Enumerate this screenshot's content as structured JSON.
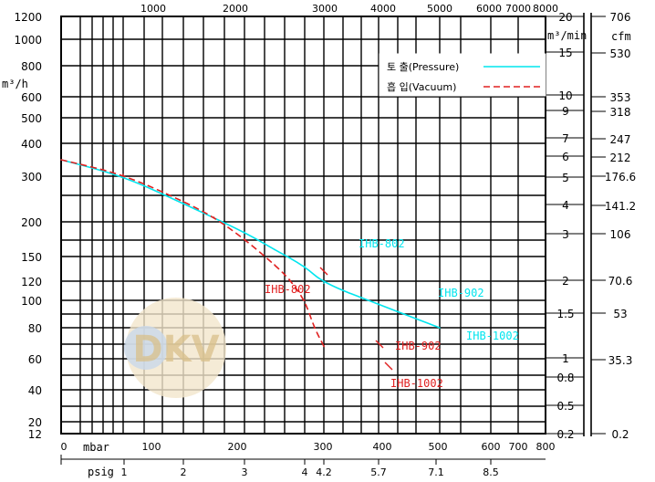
{
  "chart_data": {
    "type": "line",
    "units": {
      "left_top": "m³/h",
      "right_inner_top": "m³/min",
      "right_outer_top": "cfm",
      "bottom_primary": "mbar",
      "bottom_secondary": "psig"
    },
    "left_ticks": [
      "1200",
      "1000",
      "800",
      "600",
      "500",
      "400",
      "300",
      "200",
      "150",
      "120",
      "100",
      "80",
      "60",
      "40",
      "20",
      "12"
    ],
    "right_inner_ticks": [
      "20",
      "15",
      "10",
      "9",
      "7",
      "6",
      "5",
      "4",
      "3",
      "2",
      "1.5",
      "1",
      "0.8",
      "0.5",
      "0.2"
    ],
    "right_outer_ticks": [
      "706",
      "530",
      "353",
      "318",
      "247",
      "212",
      "176.6",
      "141.2",
      "106",
      "70.6",
      "53",
      "35.3",
      "0.2"
    ],
    "top_ticks": [
      "1000",
      "2000",
      "3000",
      "4000",
      "5000",
      "6000",
      "7000",
      "8000"
    ],
    "bottom_primary_ticks": [
      "0",
      "100",
      "200",
      "300",
      "400",
      "500",
      "600",
      "700",
      "800"
    ],
    "bottom_secondary_ticks": [
      "1",
      "2",
      "3",
      "4",
      "4.2",
      "5.7",
      "7.1",
      "8.5"
    ],
    "series": [
      {
        "name": "토 출(Pressure)",
        "color": "#00e5ee",
        "style": "solid",
        "x": [
          0,
          100,
          200,
          300,
          350,
          400,
          450,
          500,
          550
        ],
        "y": [
          350,
          300,
          240,
          185,
          160,
          138,
          118,
          97,
          80
        ]
      },
      {
        "name": "흡 입(Vacuum)",
        "color": "#e02020",
        "style": "dashed",
        "x": [
          0,
          100,
          200,
          250,
          300,
          350,
          375,
          400,
          425,
          450
        ],
        "y": [
          350,
          305,
          245,
          210,
          175,
          140,
          122,
          100,
          80,
          68
        ]
      }
    ],
    "annotations": [
      {
        "text": "IHB-802",
        "color": "#00e5ee",
        "x": 350,
        "y": 160
      },
      {
        "text": "IHB-902",
        "color": "#00e5ee",
        "x": 500,
        "y": 97
      },
      {
        "text": "IHB-1002",
        "color": "#00e5ee",
        "x": 550,
        "y": 80
      },
      {
        "text": "IHB-802",
        "color": "#e02020",
        "x": 300,
        "y": 175
      },
      {
        "text": "IHB-902",
        "color": "#e02020",
        "x": 400,
        "y": 100
      },
      {
        "text": "IHB-1002",
        "color": "#e02020",
        "x": 425,
        "y": 80
      }
    ],
    "watermark": "DKV",
    "grid": true,
    "legend_position": "top-right"
  }
}
